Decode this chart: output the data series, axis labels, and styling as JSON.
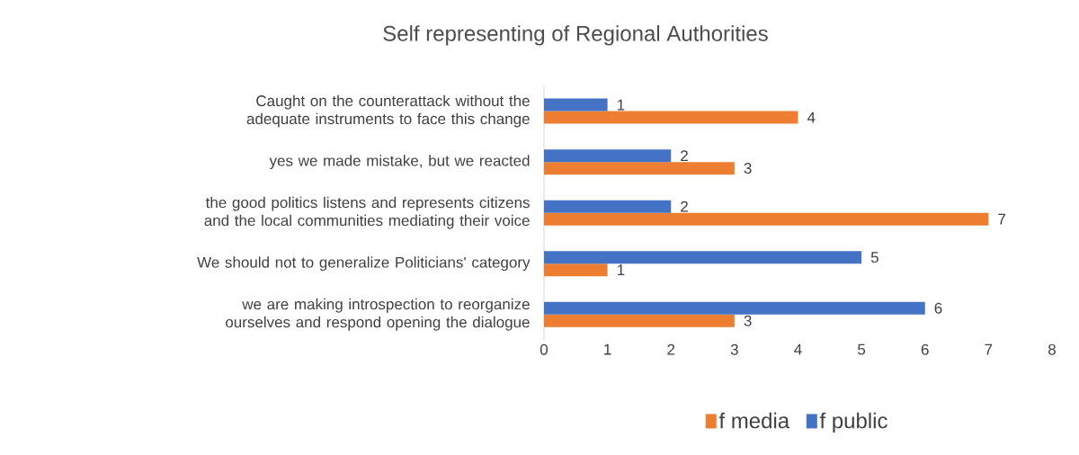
{
  "chart_data": {
    "type": "bar",
    "orientation": "horizontal",
    "title": "Self representing of Regional Authorities",
    "categories": [
      "Caught on the counterattack without the adequate instruments to face this change",
      "yes we made mistake, but we reacted",
      "the good politics listens and represents citizens and the local communities mediating their voice",
      "We should not to generalize Politicians' category",
      "we are making introspection to reorganize ourselves and respond opening the dialogue"
    ],
    "series": [
      {
        "name": "f media",
        "color": "#ed7d31",
        "values": [
          4,
          3,
          7,
          1,
          3
        ]
      },
      {
        "name": "f public",
        "color": "#4472c4",
        "values": [
          1,
          2,
          2,
          5,
          6
        ]
      }
    ],
    "xlim": [
      0,
      8
    ],
    "xticks": [
      0,
      1,
      2,
      3,
      4,
      5,
      6,
      7,
      8
    ],
    "data_labels": true,
    "legend": "bottom",
    "grid": false
  }
}
